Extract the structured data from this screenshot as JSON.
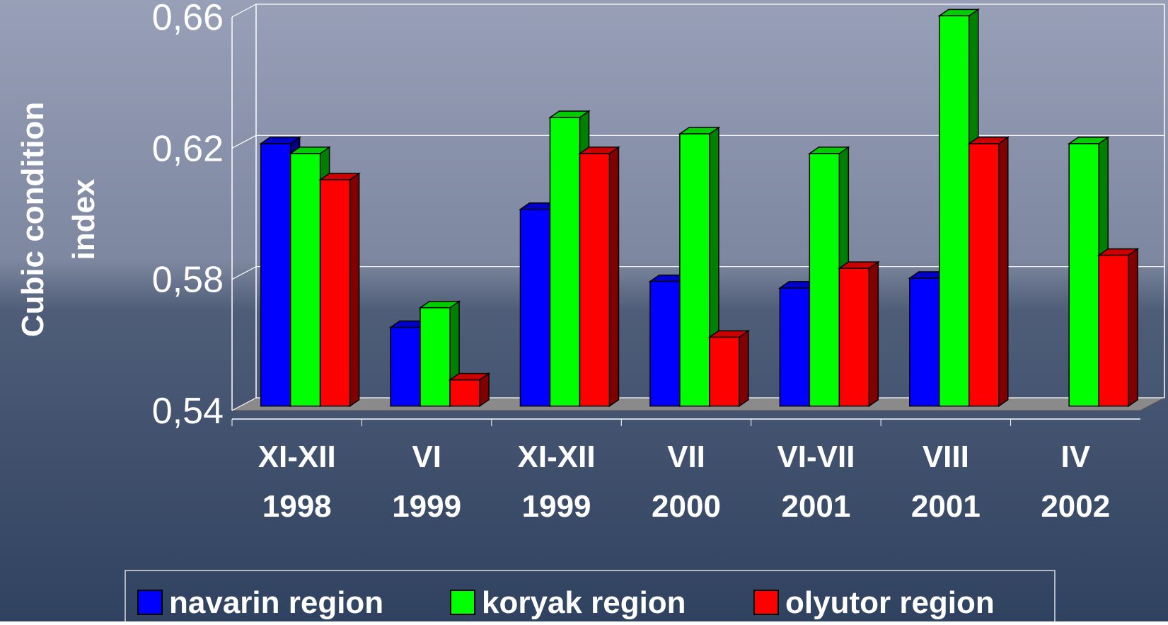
{
  "chart_data": {
    "type": "bar3d",
    "ylabel": "Cubic condition index",
    "categories": [
      "XI-XII 1998",
      "VI 1999",
      "XI-XII 1999",
      "VII 2000",
      "VI-VII 2001",
      "VIII 2001",
      "IV 2002"
    ],
    "series": [
      {
        "name": "navarin region",
        "color": "#0000ff",
        "values": [
          0.62,
          0.564,
          0.6,
          0.578,
          0.576,
          0.579,
          null
        ]
      },
      {
        "name": "koryak region",
        "color": "#00ff00",
        "values": [
          0.617,
          0.57,
          0.628,
          0.623,
          0.617,
          0.659,
          0.62
        ]
      },
      {
        "name": "olyutor region",
        "color": "#ff0000",
        "values": [
          0.609,
          0.548,
          0.617,
          0.561,
          0.582,
          0.62,
          0.586
        ]
      }
    ],
    "ylim": [
      0.54,
      0.66
    ],
    "yticks": [
      {
        "value": 0.54,
        "label": "0,54"
      },
      {
        "value": 0.58,
        "label": "0,58"
      },
      {
        "value": 0.62,
        "label": "0,62"
      },
      {
        "value": 0.66,
        "label": "0,66"
      }
    ],
    "grid": true
  }
}
